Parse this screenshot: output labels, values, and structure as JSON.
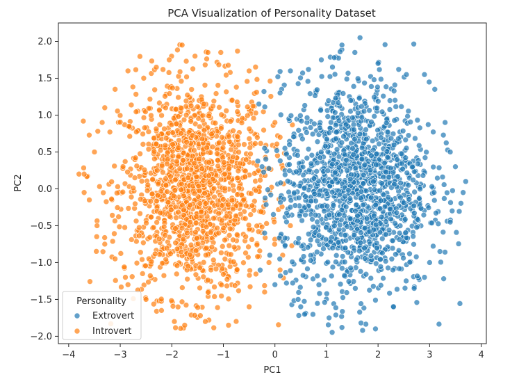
{
  "chart_data": {
    "type": "scatter",
    "title": "PCA Visualization of Personality Dataset",
    "xlabel": "PC1",
    "ylabel": "PC2",
    "xlim": [
      -4.2,
      4.1
    ],
    "ylim": [
      -2.1,
      2.25
    ],
    "xticks": [
      -4,
      -3,
      -2,
      -1,
      0,
      1,
      2,
      3,
      4
    ],
    "yticks": [
      -2.0,
      -1.5,
      -1.0,
      -0.5,
      0.0,
      0.5,
      1.0,
      1.5,
      2.0
    ],
    "grid": false,
    "legend": {
      "title": "Personality",
      "placement": "lower-left"
    },
    "series": [
      {
        "name": "Extrovert",
        "color": "#1f77b4",
        "cluster": {
          "center": [
            1.55,
            0.0
          ],
          "std": [
            0.72,
            0.72
          ],
          "count": 1450
        },
        "points": [
          [
            1.65,
            2.05
          ],
          [
            1.3,
            1.95
          ],
          [
            1.55,
            1.85
          ],
          [
            0.9,
            1.75
          ],
          [
            1.15,
            1.78
          ],
          [
            2.0,
            1.7
          ],
          [
            2.4,
            1.62
          ],
          [
            0.3,
            1.6
          ],
          [
            0.65,
            1.62
          ],
          [
            2.9,
            1.55
          ],
          [
            3.1,
            1.35
          ],
          [
            0.1,
            1.3
          ],
          [
            3.3,
            0.9
          ],
          [
            3.5,
            0.3
          ],
          [
            3.7,
            0.1
          ],
          [
            3.65,
            -0.05
          ],
          [
            3.4,
            -0.45
          ],
          [
            3.2,
            -0.85
          ],
          [
            3.0,
            -1.0
          ],
          [
            2.9,
            -1.2
          ],
          [
            2.7,
            -1.35
          ],
          [
            2.3,
            -1.6
          ],
          [
            1.95,
            -1.9
          ],
          [
            1.7,
            -1.92
          ],
          [
            1.3,
            -1.88
          ],
          [
            1.05,
            -1.75
          ],
          [
            0.5,
            -1.6
          ],
          [
            0.45,
            -1.5
          ],
          [
            0.0,
            -1.3
          ],
          [
            -0.1,
            -0.9
          ],
          [
            -0.2,
            -0.6
          ],
          [
            -0.25,
            0.3
          ],
          [
            -0.2,
            0.55
          ],
          [
            2.55,
            1.55
          ],
          [
            3.4,
            0.5
          ]
        ]
      },
      {
        "name": "Introvert",
        "color": "#ff7f0e",
        "cluster": {
          "center": [
            -1.55,
            0.0
          ],
          "std": [
            0.72,
            0.72
          ],
          "count": 1450
        },
        "points": [
          [
            -1.8,
            1.95
          ],
          [
            -1.3,
            1.85
          ],
          [
            -1.05,
            1.85
          ],
          [
            -1.55,
            1.8
          ],
          [
            -2.05,
            1.75
          ],
          [
            -2.3,
            1.65
          ],
          [
            -2.85,
            1.6
          ],
          [
            -3.1,
            1.35
          ],
          [
            -3.3,
            1.1
          ],
          [
            -3.35,
            0.9
          ],
          [
            -3.5,
            0.5
          ],
          [
            -3.7,
            0.2
          ],
          [
            -3.8,
            0.2
          ],
          [
            -3.6,
            -0.15
          ],
          [
            -3.45,
            -0.5
          ],
          [
            -3.3,
            -0.75
          ],
          [
            -3.1,
            -0.95
          ],
          [
            -2.9,
            -1.2
          ],
          [
            -2.85,
            -1.3
          ],
          [
            -2.5,
            -1.5
          ],
          [
            -2.2,
            -1.65
          ],
          [
            -1.95,
            -1.8
          ],
          [
            -1.75,
            -1.85
          ],
          [
            -1.35,
            -1.8
          ],
          [
            -0.9,
            -1.85
          ],
          [
            -0.5,
            -1.6
          ],
          [
            -0.2,
            -1.4
          ],
          [
            0.1,
            -1.1
          ],
          [
            0.15,
            -0.9
          ],
          [
            0.3,
            -0.5
          ],
          [
            0.05,
            0.45
          ],
          [
            0.0,
            0.9
          ],
          [
            0.1,
            0.7
          ],
          [
            -0.5,
            1.6
          ],
          [
            -3.7,
            -0.05
          ]
        ]
      }
    ]
  }
}
